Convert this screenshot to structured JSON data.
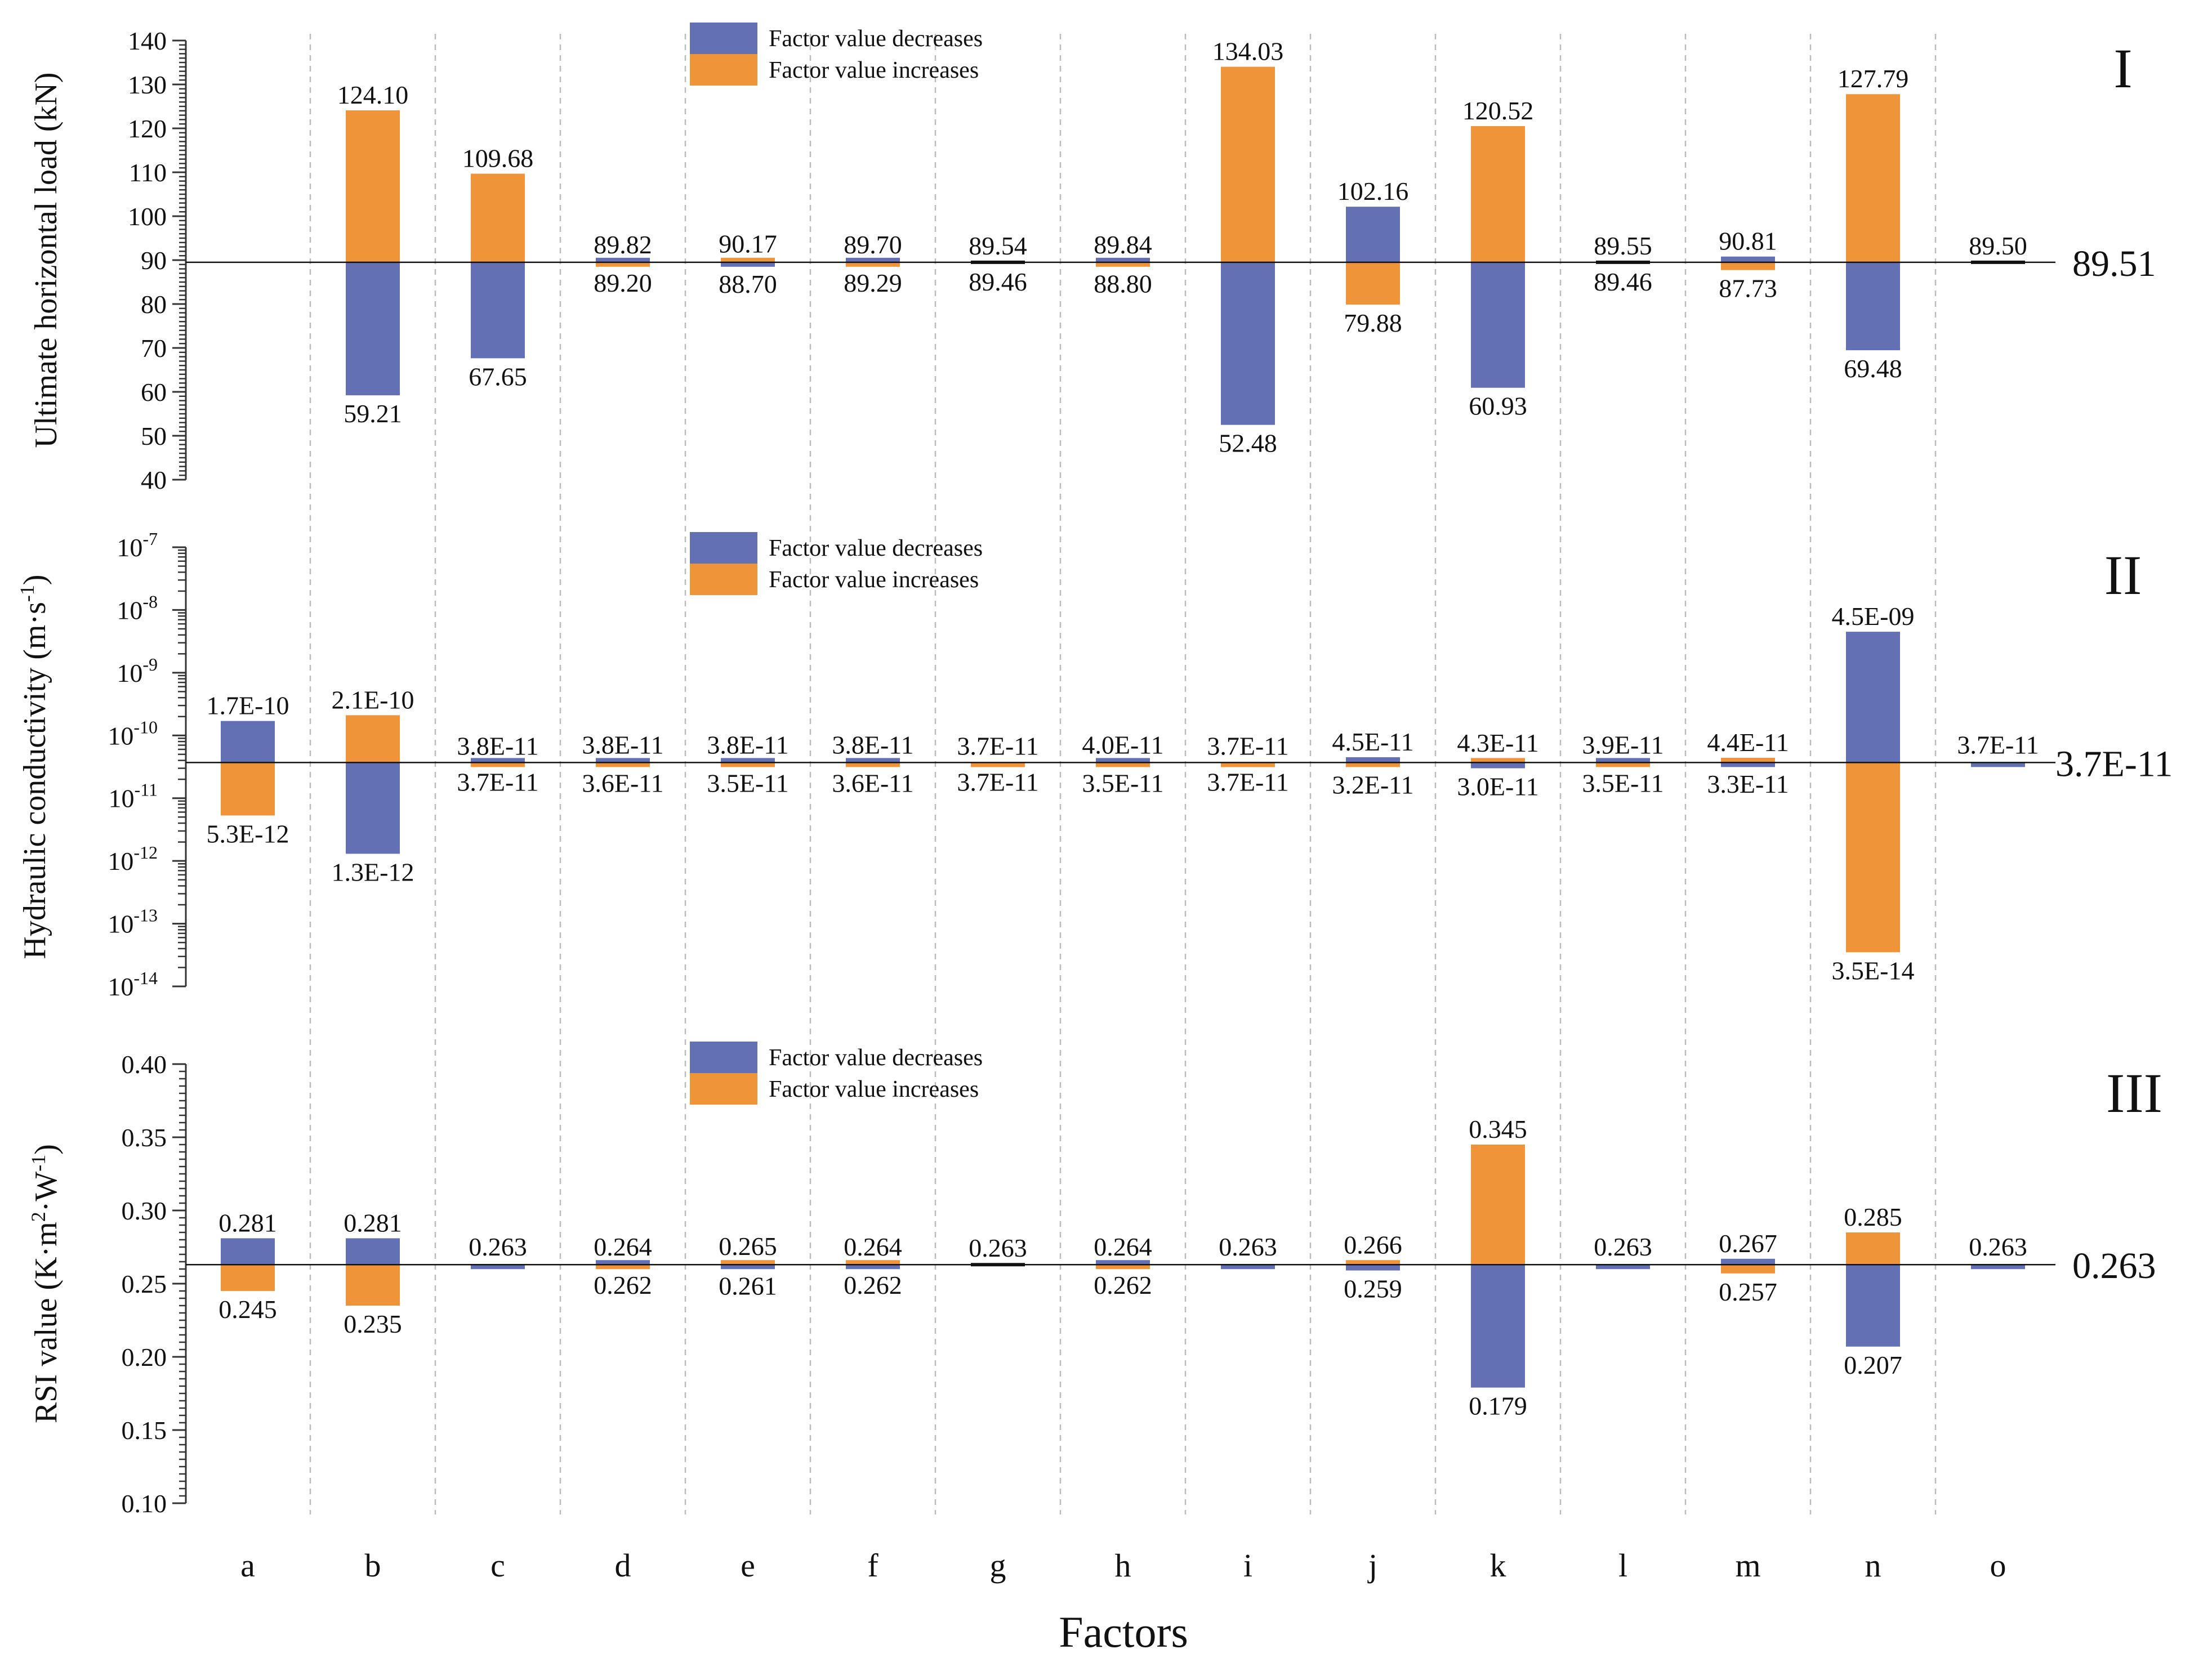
{
  "colors": {
    "decrease": "#6470b4",
    "increase": "#f0943a",
    "axis": "#333333",
    "grid": "#bbbbbb"
  },
  "legend": {
    "decrease": "Factor value decreases",
    "increase": "Factor value increases"
  },
  "categories": [
    "a",
    "b",
    "c",
    "d",
    "e",
    "f",
    "g",
    "h",
    "i",
    "j",
    "k",
    "l",
    "m",
    "n",
    "o"
  ],
  "xlabel": "Factors",
  "chart_data": [
    {
      "type": "bar",
      "panel": "I",
      "scale": "linear",
      "ylabel": "Ultimate horizontal load (kN)",
      "ylim": [
        40,
        140
      ],
      "yticks": [
        "40",
        "50",
        "60",
        "70",
        "80",
        "90",
        "100",
        "110",
        "120",
        "130",
        "140"
      ],
      "baseline": 89.51,
      "baseline_label": "89.51",
      "series": [
        {
          "name": "Factor value decreases",
          "values": [
            null,
            59.21,
            67.65,
            89.82,
            88.7,
            89.7,
            null,
            89.84,
            52.48,
            102.16,
            60.93,
            null,
            90.81,
            69.48,
            null
          ],
          "labels": [
            "",
            "59.21",
            "67.65",
            "89.82",
            "88.70",
            "89.70",
            "",
            "89.84",
            "52.48",
            "102.16",
            "60.93",
            "",
            "90.81",
            "69.48",
            ""
          ]
        },
        {
          "name": "Factor value increases",
          "values": [
            null,
            124.1,
            109.68,
            89.2,
            90.17,
            89.29,
            null,
            88.8,
            134.03,
            79.88,
            120.52,
            null,
            87.73,
            127.79,
            null
          ],
          "labels": [
            "",
            "124.10",
            "109.68",
            "89.20",
            "90.17",
            "89.29",
            "",
            "88.80",
            "134.03",
            "79.88",
            "120.52",
            "",
            "87.73",
            "127.79",
            ""
          ]
        }
      ],
      "extra_labels": [
        {
          "cat": "g",
          "upper": "89.54",
          "lower": "89.46"
        },
        {
          "cat": "l",
          "upper": "89.55",
          "lower": "89.46"
        },
        {
          "cat": "o",
          "upper": "89.50",
          "lower": ""
        }
      ]
    },
    {
      "type": "bar",
      "panel": "II",
      "scale": "log",
      "ylabel": "Hydraulic conductivity (m·s",
      "ylabel_sup": "-1",
      "ylabel_end": ")",
      "ylim": [
        1e-14,
        1e-07
      ],
      "ytick_exponents": [
        "-14",
        "-13",
        "-12",
        "-11",
        "-10",
        "-9",
        "-8",
        "-7"
      ],
      "baseline": 3.7e-11,
      "baseline_label": "3.7E-11",
      "series": [
        {
          "name": "Factor value decreases",
          "values": [
            1.7e-10,
            1.3e-12,
            3.8e-11,
            3.8e-11,
            3.8e-11,
            3.8e-11,
            3.7e-11,
            4e-11,
            3.7e-11,
            4.5e-11,
            3e-11,
            3.9e-11,
            3.3e-11,
            4.5e-09,
            3.7e-11
          ],
          "labels": [
            "1.7E-10",
            "1.3E-12",
            "3.8E-11",
            "3.8E-11",
            "3.8E-11",
            "3.8E-11",
            "3.7E-11",
            "4.0E-11",
            "3.7E-11",
            "4.5E-11",
            "3.0E-11",
            "3.9E-11",
            "3.3E-11",
            "4.5E-09",
            "3.7E-11"
          ]
        },
        {
          "name": "Factor value increases",
          "values": [
            5.3e-12,
            2.1e-10,
            3.7e-11,
            3.6e-11,
            3.5e-11,
            3.6e-11,
            3.7e-11,
            3.5e-11,
            3.7e-11,
            3.2e-11,
            4.3e-11,
            3.5e-11,
            4.4e-11,
            3.5e-14,
            null
          ],
          "labels": [
            "5.3E-12",
            "2.1E-10",
            "3.7E-11",
            "3.6E-11",
            "3.5E-11",
            "3.6E-11",
            "3.7E-11",
            "3.5E-11",
            "3.7E-11",
            "3.2E-11",
            "4.3E-11",
            "3.5E-11",
            "4.4E-11",
            "3.5E-14",
            ""
          ]
        }
      ]
    },
    {
      "type": "bar",
      "panel": "III",
      "scale": "linear",
      "ylabel": "RSI value (K·m",
      "ylabel_sup": "2",
      "ylabel_mid": "·W",
      "ylabel_sup2": "-1",
      "ylabel_end": ")",
      "ylim": [
        0.1,
        0.4
      ],
      "yticks": [
        "0.10",
        "0.15",
        "0.20",
        "0.25",
        "0.30",
        "0.35",
        "0.40"
      ],
      "baseline": 0.263,
      "baseline_label": "0.263",
      "series": [
        {
          "name": "Factor value decreases",
          "values": [
            0.281,
            0.281,
            0.263,
            0.264,
            0.261,
            0.262,
            null,
            0.264,
            0.263,
            0.259,
            0.179,
            0.263,
            0.267,
            0.207,
            0.263
          ],
          "labels": [
            "0.281",
            "0.281",
            "0.263",
            "0.264",
            "0.261",
            "0.262",
            "",
            "0.264",
            "0.263",
            "0.259",
            "0.179",
            "0.263",
            "0.267",
            "0.207",
            "0.263"
          ]
        },
        {
          "name": "Factor value increases",
          "values": [
            0.245,
            0.235,
            null,
            0.262,
            0.265,
            0.264,
            null,
            0.262,
            null,
            0.266,
            0.345,
            null,
            0.257,
            0.285,
            null
          ],
          "labels": [
            "0.245",
            "0.235",
            "",
            "0.262",
            "0.265",
            "0.264",
            "",
            "0.262",
            "",
            "0.266",
            "0.345",
            "",
            "0.257",
            "0.285",
            ""
          ]
        }
      ],
      "extra_labels": [
        {
          "cat": "g",
          "upper": "0.263",
          "lower": ""
        }
      ]
    }
  ]
}
